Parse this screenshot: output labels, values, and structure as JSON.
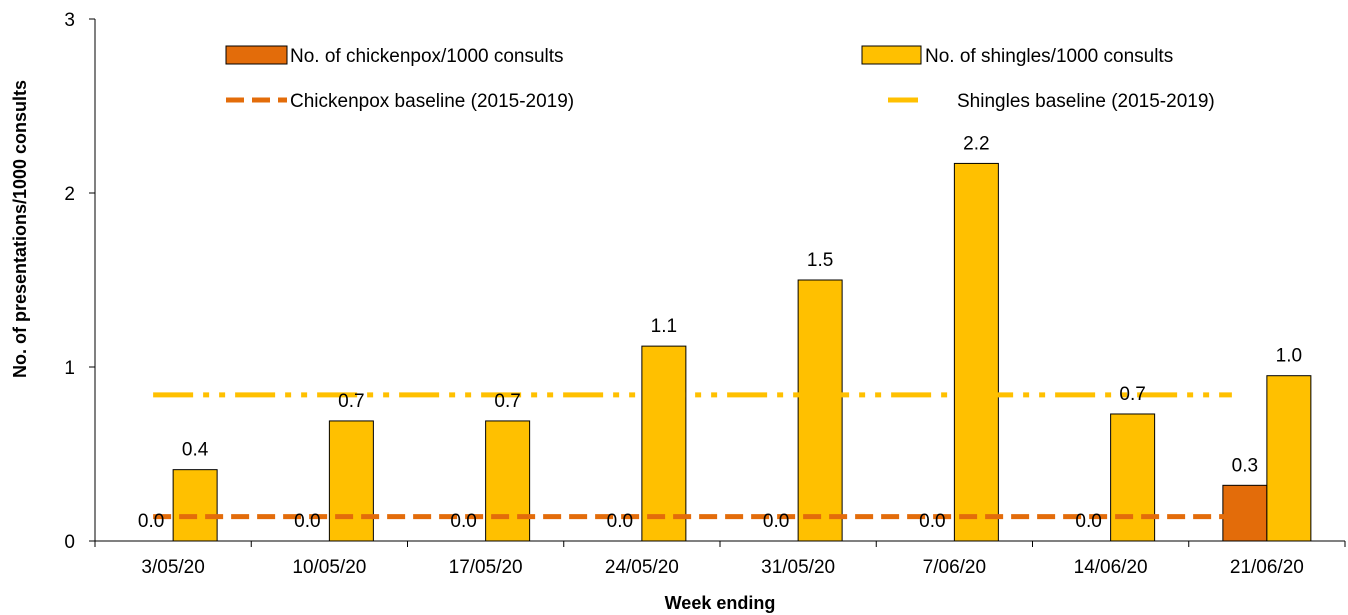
{
  "chart_data": {
    "type": "bar",
    "title": "",
    "xlabel": "Week ending",
    "ylabel": "No. of presentations/1000  consults",
    "ylim": [
      0,
      3
    ],
    "yticks": [
      "0",
      "1",
      "2",
      "3"
    ],
    "grid": false,
    "legend_position": "top",
    "categories": [
      "3/05/20",
      "10/05/20",
      "17/05/20",
      "24/05/20",
      "31/05/20",
      "7/06/20",
      "14/06/20",
      "21/06/20"
    ],
    "series": [
      {
        "name": "No. of chickenpox/1000 consults",
        "type": "bar",
        "color": "#E36C0A",
        "values": [
          0.0,
          0.0,
          0.0,
          0.0,
          0.0,
          0.0,
          0.0,
          0.32
        ],
        "labels": [
          "0.0",
          "0.0",
          "0.0",
          "0.0",
          "0.0",
          "0.0",
          "0.0",
          "0.3"
        ]
      },
      {
        "name": "No. of shingles/1000 consults",
        "type": "bar",
        "color": "#FFC000",
        "values": [
          0.41,
          0.69,
          0.69,
          1.12,
          1.5,
          2.17,
          0.73,
          0.95
        ],
        "labels": [
          "0.4",
          "0.7",
          "0.7",
          "1.1",
          "1.5",
          "2.2",
          "0.7",
          "1.0"
        ]
      },
      {
        "name": "Chickenpox baseline (2015-2019)",
        "type": "line",
        "style": "dashed",
        "color": "#E36C0A",
        "value": 0.14
      },
      {
        "name": "Shingles baseline (2015-2019)",
        "type": "line",
        "style": "dash-dot-dot",
        "color": "#FFC000",
        "value": 0.84
      }
    ]
  }
}
